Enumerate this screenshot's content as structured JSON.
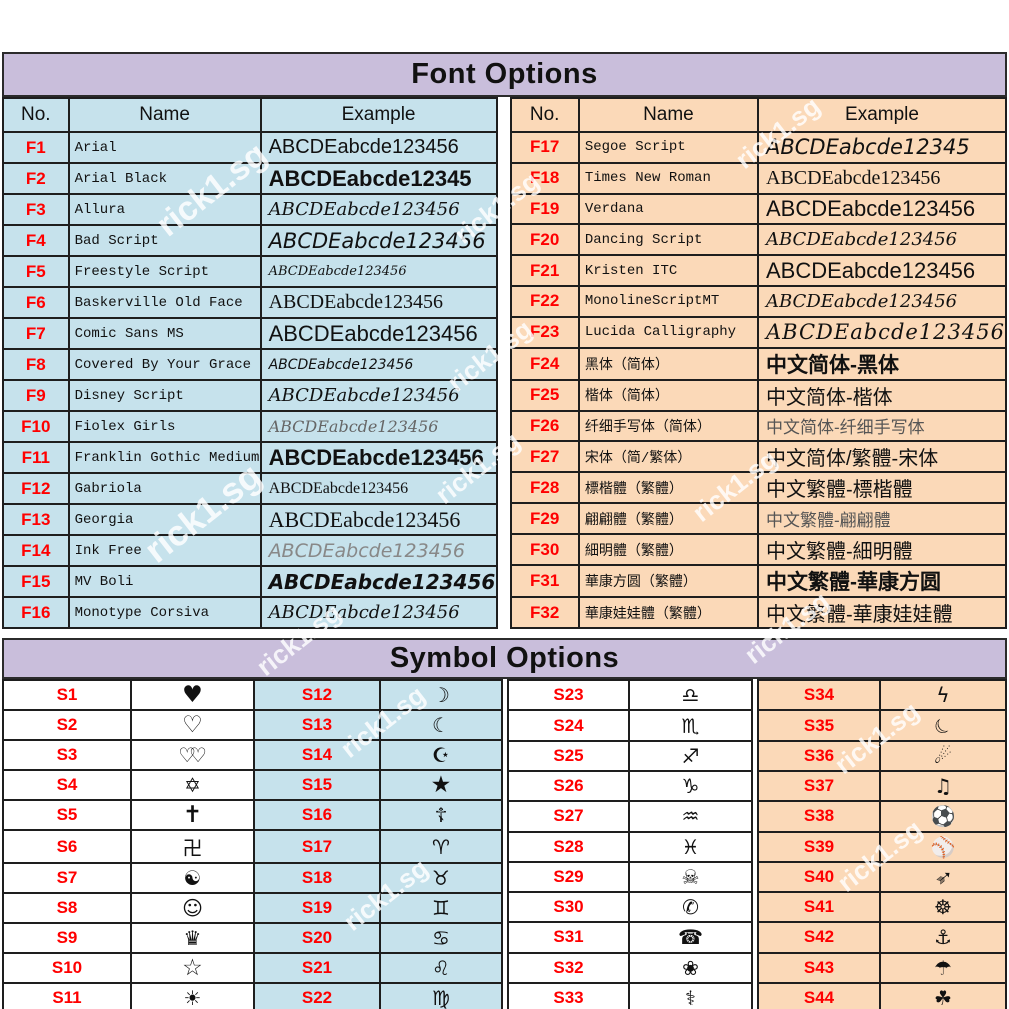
{
  "watermark_text": "rick1.sg",
  "colors": {
    "band_purple": "#c9bedb",
    "table_blue": "#c6e2ec",
    "table_peach": "#fbd9b8",
    "number_red": "#ff0000",
    "border_dark": "#1e1e1e"
  },
  "font_section": {
    "title": "Font Options",
    "columns": [
      "No.",
      "Name",
      "Example"
    ],
    "left_rows": [
      {
        "no": "F1",
        "name": "Arial",
        "example": "ABCDEabcde123456",
        "style": "sans"
      },
      {
        "no": "F2",
        "name": "Arial Black",
        "example": "ABCDEabcde12345",
        "style": "black"
      },
      {
        "no": "F3",
        "name": "Allura",
        "example": "ABCDEabcde123456",
        "style": "script"
      },
      {
        "no": "F4",
        "name": "Bad Script",
        "example": "ABCDEabcde123456",
        "style": "hand-lg"
      },
      {
        "no": "F5",
        "name": "Freestyle Script",
        "example": "ABCDEabcde123456",
        "style": "script-sm"
      },
      {
        "no": "F6",
        "name": "Baskerville Old Face",
        "example": "ABCDEabcde123456",
        "style": "serif"
      },
      {
        "no": "F7",
        "name": "Comic Sans MS",
        "example": "ABCDEabcde123456",
        "style": "sans-lg"
      },
      {
        "no": "F8",
        "name": "Covered By Your Grace",
        "example": "ABCDEabcde123456",
        "style": "hand-sm"
      },
      {
        "no": "F9",
        "name": "Disney Script",
        "example": "ABCDEabcde123456",
        "style": "script"
      },
      {
        "no": "F10",
        "name": "Fiolex Girls",
        "example": "ABCDEabcde123456",
        "style": "script-gray"
      },
      {
        "no": "F11",
        "name": "Franklin Gothic Medium",
        "example": "ABCDEabcde123456",
        "style": "black"
      },
      {
        "no": "F12",
        "name": "Gabriola",
        "example": "ABCDEabcde123456",
        "style": "serif-sm"
      },
      {
        "no": "F13",
        "name": "Georgia",
        "example": "ABCDEabcde123456",
        "style": "serif-lg"
      },
      {
        "no": "F14",
        "name": "Ink Free",
        "example": "ABCDEabcde123456",
        "style": "hand-gray"
      },
      {
        "no": "F15",
        "name": "MV Boli",
        "example": "ABCDEabcde123456",
        "style": "bolditalic"
      },
      {
        "no": "F16",
        "name": "Monotype Corsiva",
        "example": "ABCDEabcde123456",
        "style": "script"
      }
    ],
    "right_rows": [
      {
        "no": "F17",
        "name": "Segoe Script",
        "example": "ABCDEabcde12345",
        "style": "hand-lg"
      },
      {
        "no": "F18",
        "name": "Times New Roman",
        "example": "ABCDEabcde123456",
        "style": "serif"
      },
      {
        "no": "F19",
        "name": "Verdana",
        "example": "ABCDEabcde123456",
        "style": "sans-lg"
      },
      {
        "no": "F20",
        "name": "Dancing Script",
        "example": "ABCDEabcde123456",
        "style": "script"
      },
      {
        "no": "F21",
        "name": "Kristen ITC",
        "example": "ABCDEabcde123456",
        "style": "sans-lg"
      },
      {
        "no": "F22",
        "name": "MonolineScriptMT",
        "example": "ABCDEabcde123456",
        "style": "script"
      },
      {
        "no": "F23",
        "name": "Lucida Calligraphy",
        "example": "ABCDEabcde123456",
        "style": "script-lg"
      },
      {
        "no": "F24",
        "name": "黑体（简体）",
        "example": "中文简体-黑体",
        "style": "cjk-bold"
      },
      {
        "no": "F25",
        "name": "楷体（简体）",
        "example": "中文简体-楷体",
        "style": "cjk"
      },
      {
        "no": "F26",
        "name": "纤细手写体（简体）",
        "example": "中文简体-纤细手写体",
        "style": "cjk-light"
      },
      {
        "no": "F27",
        "name": "宋体（简/繁体）",
        "example": "中文简体/繁體-宋体",
        "style": "cjk"
      },
      {
        "no": "F28",
        "name": "標楷體（繁體）",
        "example": "中文繁體-標楷體",
        "style": "cjk"
      },
      {
        "no": "F29",
        "name": "翩翩體（繁體）",
        "example": "中文繁體-翩翩體",
        "style": "cjk-light"
      },
      {
        "no": "F30",
        "name": "細明體（繁體）",
        "example": "中文繁體-細明體",
        "style": "cjk"
      },
      {
        "no": "F31",
        "name": "華康方圆（繁體）",
        "example": "中文繁體-華康方圆",
        "style": "cjk-bold"
      },
      {
        "no": "F32",
        "name": "華康娃娃體（繁體）",
        "example": "中文繁體-華康娃娃體",
        "style": "cjk"
      }
    ]
  },
  "symbol_section": {
    "title": "Symbol Options",
    "groups": [
      {
        "bg": "white",
        "items": [
          {
            "no": "S1",
            "glyph": "♥",
            "name": "black-heart",
            "style": "big"
          },
          {
            "no": "S2",
            "glyph": "♡",
            "name": "white-heart",
            "style": "big"
          },
          {
            "no": "S3",
            "glyph": "♡♡",
            "name": "double-hearts",
            "style": "overlap"
          },
          {
            "no": "S4",
            "glyph": "✡",
            "name": "star-of-david"
          },
          {
            "no": "S5",
            "glyph": "✝",
            "name": "latin-cross",
            "style": "big"
          },
          {
            "no": "S6",
            "glyph": "卍",
            "name": "swastika"
          },
          {
            "no": "S7",
            "glyph": "☯",
            "name": "yin-yang"
          },
          {
            "no": "S8",
            "glyph": "☺",
            "name": "smiley-face"
          },
          {
            "no": "S9",
            "glyph": "♛",
            "name": "crown"
          },
          {
            "no": "S10",
            "glyph": "☆",
            "name": "white-star",
            "style": "big"
          },
          {
            "no": "S11",
            "glyph": "☀",
            "name": "sun"
          }
        ]
      },
      {
        "bg": "blue",
        "items": [
          {
            "no": "S12",
            "glyph": "☽",
            "name": "crescent-moon-first-quarter",
            "style": "bold"
          },
          {
            "no": "S13",
            "glyph": "☾",
            "name": "crescent-moon-last-quarter"
          },
          {
            "no": "S14",
            "glyph": "☪",
            "name": "star-and-crescent"
          },
          {
            "no": "S15",
            "glyph": "★",
            "name": "black-star",
            "style": "big"
          },
          {
            "no": "S16",
            "glyph": "☦",
            "name": "orthodox-cross"
          },
          {
            "no": "S17",
            "glyph": "♈",
            "name": "aries"
          },
          {
            "no": "S18",
            "glyph": "♉",
            "name": "taurus"
          },
          {
            "no": "S19",
            "glyph": "♊",
            "name": "gemini"
          },
          {
            "no": "S20",
            "glyph": "♋",
            "name": "cancer"
          },
          {
            "no": "S21",
            "glyph": "♌",
            "name": "leo"
          },
          {
            "no": "S22",
            "glyph": "♍",
            "name": "virgo"
          }
        ]
      },
      {
        "bg": "white",
        "items": [
          {
            "no": "S23",
            "glyph": "♎",
            "name": "libra"
          },
          {
            "no": "S24",
            "glyph": "♏",
            "name": "scorpio"
          },
          {
            "no": "S25",
            "glyph": "♐",
            "name": "sagittarius"
          },
          {
            "no": "S26",
            "glyph": "♑",
            "name": "capricorn"
          },
          {
            "no": "S27",
            "glyph": "♒",
            "name": "aquarius"
          },
          {
            "no": "S28",
            "glyph": "♓",
            "name": "pisces"
          },
          {
            "no": "S29",
            "glyph": "☠",
            "name": "skull-and-crossbones"
          },
          {
            "no": "S30",
            "glyph": "✆",
            "name": "telephone-receiver"
          },
          {
            "no": "S31",
            "glyph": "☎",
            "name": "black-telephone"
          },
          {
            "no": "S32",
            "glyph": "❀",
            "name": "flower"
          },
          {
            "no": "S33",
            "glyph": "⚕",
            "name": "staff-of-asclepius"
          }
        ]
      },
      {
        "bg": "peach",
        "items": [
          {
            "no": "S34",
            "glyph": "ϟ",
            "name": "lightning-bolt"
          },
          {
            "no": "S35",
            "glyph": "☾",
            "name": "crescent-moon-filled",
            "style": "moon"
          },
          {
            "no": "S36",
            "glyph": "☄",
            "name": "comet"
          },
          {
            "no": "S37",
            "glyph": "♫",
            "name": "music-notes"
          },
          {
            "no": "S38",
            "glyph": "⚽",
            "name": "soccer-ball"
          },
          {
            "no": "S39",
            "glyph": "⚾",
            "name": "baseball"
          },
          {
            "no": "S40",
            "glyph": "➳",
            "name": "arrow",
            "style": "ne"
          },
          {
            "no": "S41",
            "glyph": "☸",
            "name": "ship-wheel"
          },
          {
            "no": "S42",
            "glyph": "⚓",
            "name": "anchor"
          },
          {
            "no": "S43",
            "glyph": "☂",
            "name": "umbrella"
          },
          {
            "no": "S44",
            "glyph": "☘",
            "name": "shamrock",
            "style": "bold"
          }
        ]
      }
    ]
  }
}
